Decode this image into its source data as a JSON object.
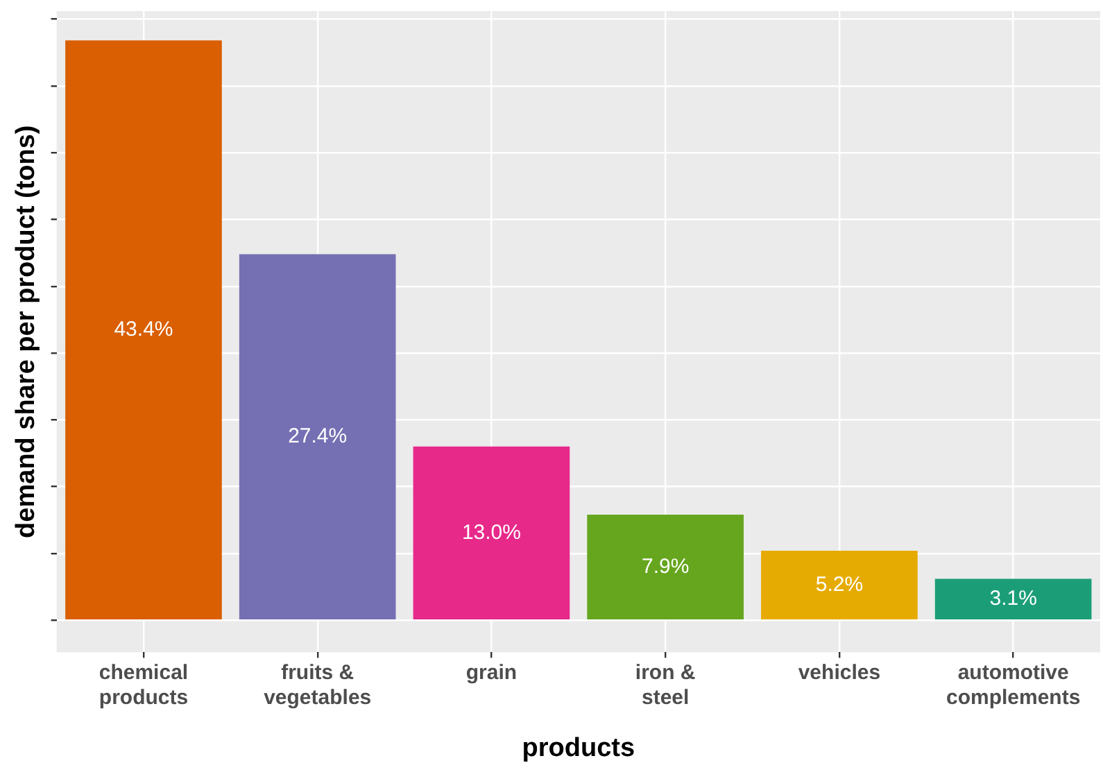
{
  "chart_data": {
    "type": "bar",
    "xlabel": "products",
    "ylabel": "demand share per product (tons)",
    "categories": [
      "chemical products",
      "fruits & vegetables",
      "grain",
      "iron & steel",
      "vehicles",
      "automotive complements"
    ],
    "values": [
      43.4,
      27.4,
      13.0,
      7.9,
      5.2,
      3.1
    ],
    "value_labels": [
      "43.4%",
      "27.4%",
      "13.0%",
      "7.9%",
      "5.2%",
      "3.1%"
    ],
    "colors": [
      "#d95f02",
      "#7570b3",
      "#e7298a",
      "#66a61e",
      "#e6ab02",
      "#1b9e77"
    ],
    "ylim": [
      -2.4,
      45.6
    ],
    "yticks": [
      {
        "value": 0,
        "label": null
      },
      {
        "value": 5,
        "label": null
      },
      {
        "value": 10,
        "label": null
      },
      {
        "value": 15,
        "label": null
      },
      {
        "value": 20,
        "label": null
      },
      {
        "value": 25,
        "label": null
      },
      {
        "value": 30,
        "label": null
      },
      {
        "value": 35,
        "label": null
      },
      {
        "value": 40,
        "label": null
      },
      {
        "value": 45,
        "label": null
      }
    ],
    "grid": true,
    "tick_labels": "x",
    "legend": false
  }
}
